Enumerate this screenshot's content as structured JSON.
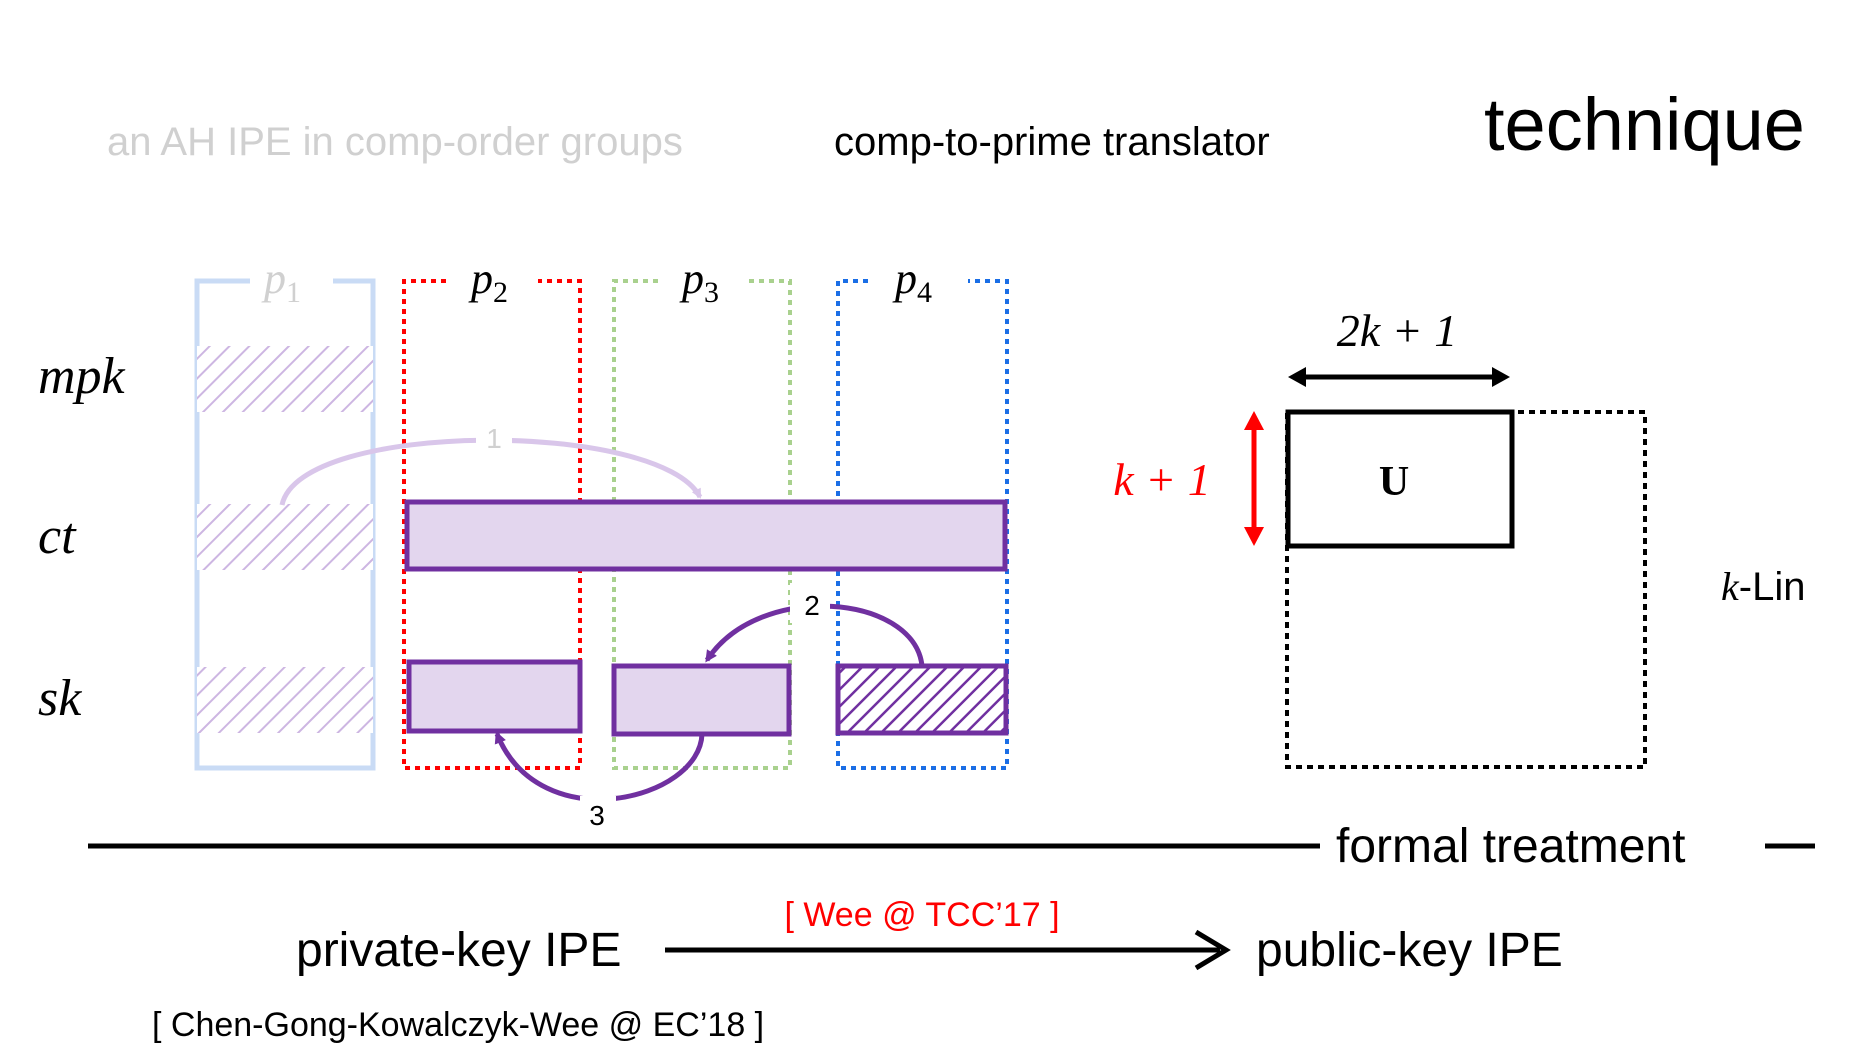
{
  "header": {
    "left_title": "an AH IPE in comp-order groups",
    "middle_title": "comp-to-prime translator",
    "right_title": "technique"
  },
  "columns": [
    "p1",
    "p2",
    "p3",
    "p4"
  ],
  "column_colors": {
    "p1": "#c9dbf5",
    "p2": "#ff0000",
    "p3": "#a9d18e",
    "p4": "#1a6ee6"
  },
  "rows": [
    "mpk",
    "ct",
    "sk"
  ],
  "arrow_labels": [
    "1",
    "2",
    "3"
  ],
  "fill_color": "#e3d6ee",
  "stroke_color": "#7030a0",
  "matrix": {
    "width_label": "2k + 1",
    "height_label": "k + 1",
    "block_label": "U",
    "assumption": "k-Lin"
  },
  "divider_label": "formal treatment",
  "bottom": {
    "from": "private-key IPE",
    "to": "public-key IPE",
    "arrow_citation": "[ Wee @ TCC’17 ]",
    "citation": "[ Chen-Gong-Kowalczyk-Wee @ EC’18 ]"
  }
}
